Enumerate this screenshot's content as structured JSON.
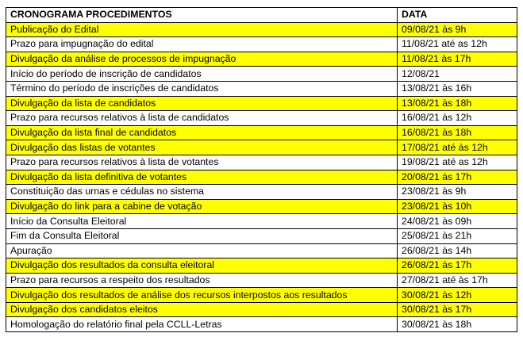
{
  "header": {
    "procedure": "CRONOGRAMA PROCEDIMENTOS",
    "date": "DATA"
  },
  "highlight_color": "#ffff00",
  "rows": [
    {
      "procedure": "Publicação do Edital",
      "date": "09/08/21 às 9h",
      "highlighted": true
    },
    {
      "procedure": "Prazo para impugnação do edital",
      "date": "11/08/21 até as 12h",
      "highlighted": false
    },
    {
      "procedure": "Divulgação da análise de processos de impugnação",
      "date": "11/08/21 às 17h",
      "highlighted": true
    },
    {
      "procedure": "Início do período de inscrição de candidatos",
      "date": "12/08/21",
      "highlighted": false
    },
    {
      "procedure": "Término do período de inscrições de candidatos",
      "date": "13/08/21 às 16h",
      "highlighted": false
    },
    {
      "procedure": "Divulgação da lista de candidatos",
      "date": "13/08/21 às 18h",
      "highlighted": true
    },
    {
      "procedure": "Prazo para recursos relativos à lista de candidatos",
      "date": "16/08/21 às 12h",
      "highlighted": false
    },
    {
      "procedure": "Divulgação da lista final de candidatos",
      "date": "16/08/21 às 18h",
      "highlighted": true
    },
    {
      "procedure": "Divulgação das listas de votantes",
      "date": "17/08/21 até às 12h",
      "highlighted": true
    },
    {
      "procedure": "Prazo para recursos relativos à lista de votantes",
      "date": "19/08/21 até as 12h",
      "highlighted": false
    },
    {
      "procedure": "Divulgação da lista definitiva de votantes",
      "date": "20/08/21 às 17h",
      "highlighted": true
    },
    {
      "procedure": "Constituição das urnas e cédulas no sistema",
      "date": "23/08/21 às 9h",
      "highlighted": false
    },
    {
      "procedure": "Divulgação do link para a cabine de votação",
      "date": "23/08/21 às 10h",
      "highlighted": true
    },
    {
      "procedure": "Início da Consulta Eleitoral",
      "date": "24/08/21 às 09h",
      "highlighted": false
    },
    {
      "procedure": "Fim da Consulta Eleitoral",
      "date": "25/08/21 às 21h",
      "highlighted": false
    },
    {
      "procedure": "Apuração",
      "date": "26/08/21 às 14h",
      "highlighted": false
    },
    {
      "procedure": "Divulgação dos resultados da consulta eleitoral",
      "date": "26/08/21 às 17h",
      "highlighted": true
    },
    {
      "procedure": "Prazo para recursos a respeito dos resultados",
      "date": "27/08/21 até às 17h",
      "highlighted": false
    },
    {
      "procedure": "Divulgação dos resultados de análise dos recursos interpostos aos resultados",
      "date": "30/08/21 às 12h",
      "highlighted": true
    },
    {
      "procedure": "Divulgação dos candidatos eleitos",
      "date": "30/08/21 às 17h",
      "highlighted": true
    },
    {
      "procedure": "Homologação do relatório final pela CCLL-Letras",
      "date": "30/08/21 às 18h",
      "highlighted": false
    }
  ]
}
